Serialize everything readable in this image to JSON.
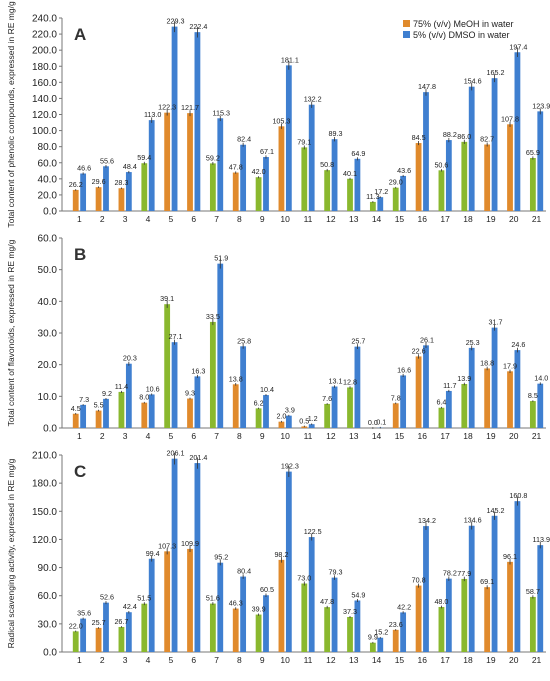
{
  "colors": {
    "meoh": "#E08A2C",
    "meoh_alt": "#8AB82E",
    "dmso": "#3F7FD0",
    "axis": "#777777",
    "text": "#222222",
    "panel_letter": "#333333"
  },
  "legend": {
    "meoh": "75% (v/v) MeOH in water",
    "dmso": "5% (v/v) DMSO in water"
  },
  "chart_data": [
    {
      "type": "bar",
      "panel": "A",
      "ylabel": "Total content of phenolic compounds, expressed in RE mg/g",
      "categories": [
        "1",
        "2",
        "3",
        "4",
        "5",
        "6",
        "7",
        "8",
        "9",
        "10",
        "11",
        "12",
        "13",
        "14",
        "15",
        "16",
        "17",
        "18",
        "19",
        "20",
        "21"
      ],
      "ylim": [
        0,
        240
      ],
      "yticks": [
        "0.0",
        "20.0",
        "40.0",
        "60.0",
        "80.0",
        "100.0",
        "120.0",
        "140.0",
        "160.0",
        "180.0",
        "200.0",
        "220.0",
        "240.0"
      ],
      "legend_position": "top-right",
      "series": [
        {
          "name": "75% (v/v) MeOH in water",
          "values": [
            26.2,
            29.6,
            28.3,
            59.4,
            122.3,
            121.7,
            59.2,
            47.8,
            42.0,
            105.3,
            79.1,
            50.8,
            40.1,
            11.3,
            29.0,
            84.5,
            50.6,
            86.0,
            82.7,
            107.8,
            65.9
          ],
          "labels": [
            "26.2",
            "29.6",
            "28.3",
            "59.4",
            "122.3",
            "121.7",
            "59.2",
            "47.8",
            "42.0",
            "105.3",
            "79.1",
            "50.8",
            "40.1",
            "11.3",
            "29.0",
            "84.5",
            "50.6",
            "86.0",
            "82.7",
            "107.8",
            "65.9"
          ]
        },
        {
          "name": "5% (v/v) DMSO in water",
          "values": [
            46.6,
            55.6,
            48.4,
            113.0,
            229.3,
            222.4,
            115.3,
            82.4,
            67.1,
            181.1,
            132.2,
            89.3,
            64.9,
            17.2,
            43.6,
            147.8,
            88.2,
            154.6,
            165.2,
            197.4,
            123.9
          ],
          "labels": [
            "46.6",
            "55.6",
            "48.4",
            "113.0",
            "229.3",
            "222.4",
            "115.3",
            "82.4",
            "67.1",
            "181.1",
            "132.2",
            "89.3",
            "64.9",
            "17.2",
            "43.6",
            "147.8",
            "88.2",
            "154.6",
            "165.2",
            "197.4",
            "123.9"
          ]
        }
      ]
    },
    {
      "type": "bar",
      "panel": "B",
      "ylabel": "Total content of flavonoids, expressed in RE mg/g",
      "categories": [
        "1",
        "2",
        "3",
        "4",
        "5",
        "6",
        "7",
        "8",
        "9",
        "10",
        "11",
        "12",
        "13",
        "14",
        "15",
        "16",
        "17",
        "18",
        "19",
        "20",
        "21"
      ],
      "ylim": [
        0,
        60
      ],
      "yticks": [
        "0.0",
        "10.0",
        "20.0",
        "30.0",
        "40.0",
        "50.0",
        "60.0"
      ],
      "series": [
        {
          "name": "75% (v/v) MeOH in water",
          "values": [
            4.5,
            5.5,
            11.4,
            8.0,
            39.1,
            9.3,
            33.5,
            13.8,
            6.2,
            2.0,
            0.5,
            7.6,
            12.8,
            0.0,
            7.8,
            22.6,
            6.4,
            13.9,
            18.8,
            17.9,
            8.5
          ],
          "labels": [
            "4.5",
            "5.5",
            "11.4",
            "8.0",
            "39.1",
            "9.3",
            "33.5",
            "13.8",
            "6.2",
            "2.0",
            "0.5",
            "7.6",
            "12.8",
            "0.0",
            "7.8",
            "22.6",
            "6.4",
            "13.9",
            "18.8",
            "17.9",
            "8.5"
          ]
        },
        {
          "name": "5% (v/v) DMSO in water",
          "values": [
            7.3,
            9.2,
            20.3,
            10.6,
            27.1,
            16.3,
            51.9,
            25.8,
            10.4,
            3.9,
            1.2,
            13.1,
            25.7,
            0.1,
            16.6,
            26.1,
            11.7,
            25.3,
            31.7,
            24.6,
            14.0
          ],
          "labels": [
            "7.3",
            "9.2",
            "20.3",
            "10.6",
            "27.1",
            "16.3",
            "51.9",
            "25.8",
            "10.4",
            "3.9",
            "1.2",
            "13.1",
            "25.7",
            "0.1",
            "16.6",
            "26.1",
            "11.7",
            "25.3",
            "31.7",
            "24.6",
            "14.0"
          ]
        }
      ]
    },
    {
      "type": "bar",
      "panel": "C",
      "ylabel": "Radical scavenging activity, expressed in RE mg/g",
      "categories": [
        "1",
        "2",
        "3",
        "4",
        "5",
        "6",
        "7",
        "8",
        "9",
        "10",
        "11",
        "12",
        "13",
        "14",
        "15",
        "16",
        "17",
        "18",
        "19",
        "20",
        "21"
      ],
      "ylim": [
        0,
        210
      ],
      "yticks": [
        "0.0",
        "30.0",
        "60.0",
        "90.0",
        "120.0",
        "150.0",
        "180.0",
        "210.0"
      ],
      "series": [
        {
          "name": "75% (v/v) MeOH in water",
          "values": [
            22.0,
            25.7,
            26.7,
            51.5,
            107.3,
            109.9,
            51.6,
            46.3,
            39.9,
            98.2,
            73.0,
            47.8,
            37.3,
            9.9,
            23.6,
            70.8,
            48.0,
            77.9,
            69.1,
            96.1,
            58.7
          ],
          "labels": [
            "22.0",
            "25.7",
            "26.7",
            "51.5",
            "107.3",
            "109.9",
            "51.6",
            "46.3",
            "39.9",
            "98.2",
            "73.0",
            "47.8",
            "37.3",
            "9.9",
            "23.6",
            "70.8",
            "48.0",
            "77.9",
            "69.1",
            "96.1",
            "58.7"
          ]
        },
        {
          "name": "5% (v/v) DMSO in water",
          "values": [
            35.6,
            52.6,
            42.4,
            99.4,
            206.1,
            201.4,
            95.2,
            80.4,
            60.5,
            192.3,
            122.5,
            79.3,
            54.9,
            15.2,
            42.2,
            134.2,
            78.2,
            134.6,
            145.2,
            160.8,
            113.9
          ],
          "labels": [
            "35.6",
            "52.6",
            "42.4",
            "99.4",
            "206.1",
            "201.4",
            "95.2",
            "80.4",
            "60.5",
            "192.3",
            "122.5",
            "79.3",
            "54.9",
            "15.2",
            "42.2",
            "134.2",
            "78.2",
            "134.6",
            "145.2",
            "160.8",
            "113.9"
          ]
        }
      ]
    }
  ]
}
